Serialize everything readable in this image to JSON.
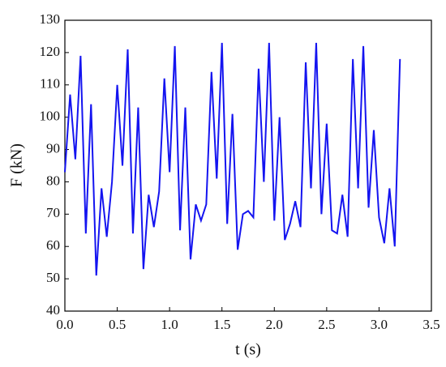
{
  "chart_data": {
    "type": "line",
    "x_label": "t (s)",
    "y_label": "F (kN)",
    "x": [
      0.0,
      0.05,
      0.1,
      0.15,
      0.2,
      0.25,
      0.3,
      0.35,
      0.4,
      0.45,
      0.5,
      0.55,
      0.6,
      0.65,
      0.7,
      0.75,
      0.8,
      0.85,
      0.9,
      0.95,
      1.0,
      1.05,
      1.1,
      1.15,
      1.2,
      1.25,
      1.3,
      1.35,
      1.4,
      1.45,
      1.5,
      1.55,
      1.6,
      1.65,
      1.7,
      1.75,
      1.8,
      1.85,
      1.9,
      1.95,
      2.0,
      2.05,
      2.1,
      2.15,
      2.2,
      2.25,
      2.3,
      2.35,
      2.4,
      2.45,
      2.5,
      2.55,
      2.6,
      2.65,
      2.7,
      2.75,
      2.8,
      2.85,
      2.9,
      2.95,
      3.0,
      3.05,
      3.1,
      3.15,
      3.2
    ],
    "series": [
      {
        "color": "#1414f0",
        "values": [
          83,
          107,
          87,
          119,
          64,
          104,
          51,
          78,
          63,
          80,
          110,
          85,
          121,
          64,
          103,
          53,
          76,
          66,
          77,
          112,
          83,
          122,
          65,
          103,
          56,
          73,
          68,
          73,
          114,
          81,
          123,
          67,
          101,
          59,
          70,
          71,
          69,
          115,
          80,
          123,
          68,
          100,
          62,
          67,
          74,
          66,
          117,
          78,
          123,
          70,
          98,
          65,
          64,
          76,
          63,
          118,
          78,
          122,
          72,
          96,
          69,
          61,
          78,
          60,
          118
        ]
      }
    ],
    "xlim": [
      0,
      3.5
    ],
    "xticks": [
      {
        "value": 0,
        "label": "0.0"
      },
      0.5,
      {
        "value": 1,
        "label": "1.0"
      },
      1.5,
      {
        "value": 2,
        "label": "2.0"
      },
      2.5,
      {
        "value": 3,
        "label": "3.0"
      },
      3.5
    ],
    "ylim": [
      40,
      130
    ],
    "yticks": [
      40,
      50,
      60,
      70,
      80,
      90,
      100,
      110,
      120,
      130
    ]
  }
}
